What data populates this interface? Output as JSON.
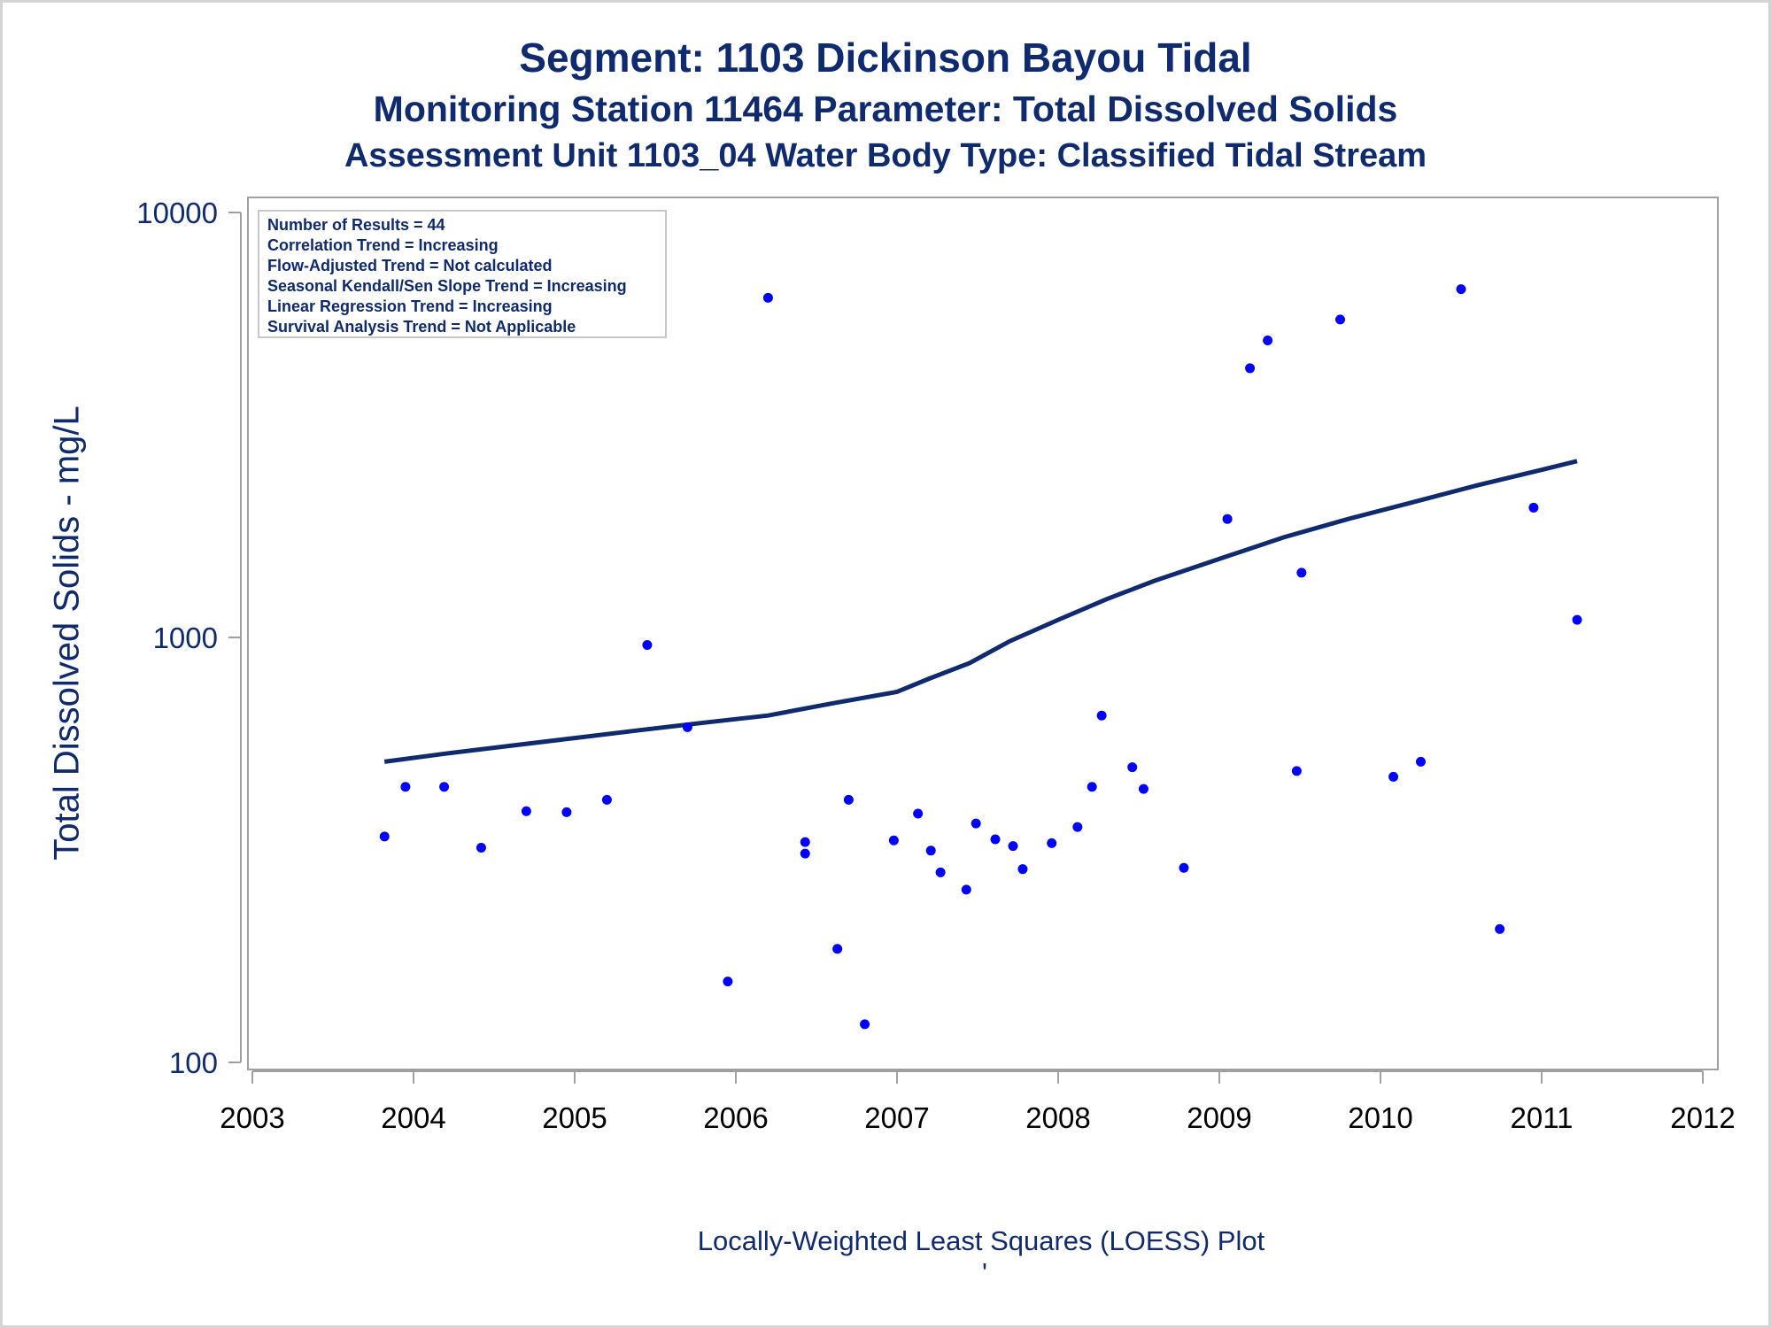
{
  "titles": {
    "line1": "Segment: 1103  Dickinson Bayou Tidal",
    "line2": "Monitoring Station 11464 Parameter: Total Dissolved Solids",
    "line3": "Assessment Unit 1103_04   Water Body Type: Classified Tidal Stream"
  },
  "legend": [
    "Number of Results = 44",
    "Correlation Trend = Increasing",
    "Flow-Adjusted Trend = Not calculated",
    "Seasonal Kendall/Sen Slope Trend = Increasing",
    "Linear Regression Trend = Increasing",
    "Survival Analysis Trend = Not Applicable"
  ],
  "footer": "Locally-Weighted Least Squares (LOESS) Plot",
  "footer_mark": "'",
  "colors": {
    "title": "#0f2a6e",
    "points": "#0000ff",
    "loess": "#0f2a6e",
    "frame": "#a0a0a0"
  },
  "chart_data": {
    "type": "scatter",
    "ylabel": "Total Dissolved Solids - mg/L",
    "yscale": "log",
    "ylim": [
      100,
      10000
    ],
    "yticks": [
      100,
      1000,
      10000
    ],
    "xlim": [
      2003,
      2012
    ],
    "xticks": [
      2003,
      2004,
      2005,
      2006,
      2007,
      2008,
      2009,
      2010,
      2011,
      2012
    ],
    "grid": false,
    "legend_position": "top-left",
    "series": [
      {
        "kind": "points",
        "points": [
          [
            2003.82,
            340
          ],
          [
            2003.95,
            445
          ],
          [
            2004.19,
            445
          ],
          [
            2004.42,
            320
          ],
          [
            2004.7,
            390
          ],
          [
            2004.95,
            388
          ],
          [
            2005.2,
            415
          ],
          [
            2005.45,
            960
          ],
          [
            2005.7,
            615
          ],
          [
            2005.95,
            155
          ],
          [
            2006.2,
            6300
          ],
          [
            2006.43,
            330
          ],
          [
            2006.43,
            310
          ],
          [
            2006.63,
            185
          ],
          [
            2006.7,
            415
          ],
          [
            2006.8,
            123
          ],
          [
            2006.98,
            333
          ],
          [
            2007.13,
            385
          ],
          [
            2007.21,
            315
          ],
          [
            2007.27,
            280
          ],
          [
            2007.43,
            255
          ],
          [
            2007.49,
            365
          ],
          [
            2007.61,
            335
          ],
          [
            2007.72,
            323
          ],
          [
            2007.78,
            285
          ],
          [
            2007.96,
            328
          ],
          [
            2008.12,
            358
          ],
          [
            2008.21,
            445
          ],
          [
            2008.27,
            655
          ],
          [
            2008.46,
            495
          ],
          [
            2008.53,
            440
          ],
          [
            2008.78,
            287
          ],
          [
            2009.05,
            1900
          ],
          [
            2009.19,
            4300
          ],
          [
            2009.3,
            5000
          ],
          [
            2009.48,
            485
          ],
          [
            2009.51,
            1420
          ],
          [
            2009.75,
            5600
          ],
          [
            2010.08,
            470
          ],
          [
            2010.25,
            510
          ],
          [
            2010.5,
            6600
          ],
          [
            2010.74,
            206
          ],
          [
            2010.95,
            2020
          ],
          [
            2011.22,
            1100
          ]
        ]
      },
      {
        "kind": "loess_line",
        "points": [
          [
            2003.82,
            510
          ],
          [
            2004.2,
            533
          ],
          [
            2004.6,
            556
          ],
          [
            2005.0,
            580
          ],
          [
            2005.4,
            605
          ],
          [
            2005.8,
            630
          ],
          [
            2006.2,
            655
          ],
          [
            2006.6,
            700
          ],
          [
            2007.0,
            745
          ],
          [
            2007.2,
            800
          ],
          [
            2007.45,
            870
          ],
          [
            2007.7,
            980
          ],
          [
            2008.0,
            1100
          ],
          [
            2008.3,
            1230
          ],
          [
            2008.6,
            1360
          ],
          [
            2009.0,
            1530
          ],
          [
            2009.4,
            1720
          ],
          [
            2009.8,
            1900
          ],
          [
            2010.2,
            2080
          ],
          [
            2010.6,
            2280
          ],
          [
            2011.0,
            2480
          ],
          [
            2011.22,
            2600
          ]
        ]
      }
    ]
  }
}
